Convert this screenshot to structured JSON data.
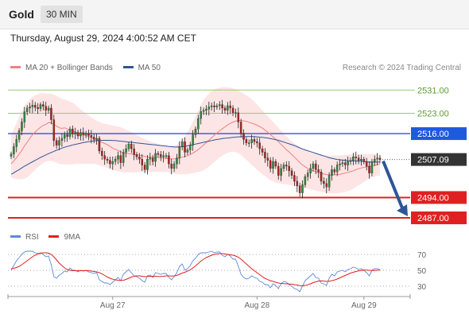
{
  "header": {
    "title": "Gold",
    "timeframe": "30 MIN"
  },
  "datetime": "Thursday, August 29, 2024 4:00:52 AM CET",
  "legend": {
    "ma20_label": "MA 20 + Bollinger Bands",
    "ma50_label": "MA 50",
    "source": "Research © 2024 Trading Central"
  },
  "rsi_legend": {
    "rsi_label": "RSI",
    "ma_label": "9MA"
  },
  "colors": {
    "ma20": "#f08080",
    "ma50": "#2f5597",
    "band": "#fde0e0",
    "resistance": "#9ccc65",
    "pivot": "#1e5adc",
    "support": "#e02020",
    "arrow": "#2f5597",
    "rsi": "#5b8ad9",
    "rsi_ma": "#e02020"
  },
  "chart_data": [
    {
      "type": "candlestick",
      "ylim": [
        2484,
        2536
      ],
      "x_tick_labels": [
        "Aug 27",
        "Aug 28",
        "Aug 29"
      ],
      "levels": [
        {
          "value": "2531.00",
          "kind": "resistance"
        },
        {
          "value": "2523.00",
          "kind": "resistance"
        },
        {
          "value": "2516.00",
          "kind": "pivot"
        },
        {
          "value": "2507.09",
          "kind": "last"
        },
        {
          "value": "2494.00",
          "kind": "support"
        },
        {
          "value": "2487.00",
          "kind": "support"
        }
      ],
      "close": [
        2509.0,
        2511.5,
        2514.0,
        2517.0,
        2520.0,
        2523.5,
        2524.8,
        2525.2,
        2525.8,
        2525.0,
        2524.6,
        2526.0,
        2525.4,
        2524.0,
        2524.8,
        2520.8,
        2513.6,
        2512.0,
        2513.6,
        2514.4,
        2515.6,
        2515.0,
        2517.6,
        2516.0,
        2516.4,
        2515.2,
        2516.4,
        2515.6,
        2516.0,
        2515.4,
        2514.8,
        2514.0,
        2514.4,
        2510.0,
        2508.4,
        2507.2,
        2506.8,
        2505.6,
        2506.4,
        2507.2,
        2508.4,
        2506.0,
        2509.6,
        2510.8,
        2512.4,
        2510.8,
        2508.8,
        2508.0,
        2507.2,
        2505.2,
        2503.6,
        2507.2,
        2507.6,
        2506.4,
        2509.2,
        2508.8,
        2508.0,
        2508.4,
        2508.4,
        2505.6,
        2504.0,
        2505.6,
        2507.6,
        2511.6,
        2513.2,
        2509.6,
        2510.4,
        2512.0,
        2515.6,
        2517.6,
        2521.2,
        2523.6,
        2524.0,
        2524.4,
        2525.2,
        2525.6,
        2525.2,
        2525.6,
        2526.0,
        2524.8,
        2524.0,
        2525.6,
        2524.8,
        2523.2,
        2523.2,
        2520.0,
        2516.0,
        2514.0,
        2512.8,
        2512.8,
        2514.0,
        2513.2,
        2512.8,
        2510.8,
        2509.6,
        2507.6,
        2506.8,
        2504.0,
        2506.4,
        2504.8,
        2501.6,
        2504.0,
        2505.2,
        2504.8,
        2503.2,
        2501.6,
        2499.6,
        2498.0,
        2495.6,
        2498.4,
        2501.2,
        2502.4,
        2504.0,
        2505.6,
        2503.6,
        2502.8,
        2499.6,
        2498.8,
        2497.6,
        2501.6,
        2503.6,
        2502.8,
        2505.2,
        2505.6,
        2506.0,
        2505.2,
        2506.4,
        2506.8,
        2508.0,
        2507.6,
        2506.8,
        2507.2,
        2506.4,
        2504.8,
        2502.4,
        2506.4,
        2507.2,
        2507.6,
        2507.0
      ],
      "ma20": [
        2505.6,
        2506.6,
        2507.7,
        2509.0,
        2510.2,
        2511.8,
        2513.0,
        2514.4,
        2515.6,
        2516.6,
        2517.4,
        2518.2,
        2518.8,
        2519.2,
        2519.8,
        2519.7,
        2519.2,
        2518.6,
        2518.0,
        2517.8,
        2518.0,
        2517.6,
        2517.2,
        2516.8,
        2516.6,
        2516.2,
        2516.0,
        2515.6,
        2515.3,
        2515.0,
        2514.6,
        2514.2,
        2514.0,
        2513.4,
        2513.0,
        2512.6,
        2512.2,
        2511.6,
        2511.0,
        2510.6,
        2510.2,
        2509.7,
        2509.4,
        2509.2,
        2509.1,
        2509.0,
        2508.8,
        2508.7,
        2508.6,
        2508.4,
        2508.2,
        2508.0,
        2507.9,
        2507.8,
        2507.8,
        2507.8,
        2507.7,
        2507.6,
        2507.6,
        2507.4,
        2507.3,
        2507.3,
        2507.4,
        2507.6,
        2507.9,
        2508.1,
        2508.4,
        2508.8,
        2509.3,
        2509.9,
        2510.5,
        2511.3,
        2512.1,
        2512.9,
        2513.7,
        2514.6,
        2515.4,
        2516.2,
        2517.0,
        2517.7,
        2518.3,
        2519.0,
        2519.5,
        2520.0,
        2520.3,
        2520.5,
        2520.5,
        2520.4,
        2520.2,
        2519.9,
        2519.6,
        2519.3,
        2518.9,
        2518.4,
        2517.9,
        2517.2,
        2516.5,
        2515.7,
        2514.9,
        2514.1,
        2513.2,
        2512.3,
        2511.4,
        2510.5,
        2509.7,
        2508.8,
        2507.9,
        2507.0,
        2506.0,
        2505.2,
        2504.6,
        2504.0,
        2503.6,
        2503.2,
        2502.9,
        2502.6,
        2502.3,
        2502.1,
        2501.9,
        2501.8,
        2501.8,
        2501.8,
        2501.9,
        2502.0,
        2502.2,
        2502.4,
        2502.7,
        2502.9,
        2503.2,
        2503.6,
        2503.9,
        2504.2,
        2504.4,
        2504.6,
        2504.7,
        2504.9,
        2505.1,
        2505.3,
        2505.5
      ],
      "ma50": [
        2502.0,
        2502.5,
        2503.1,
        2503.6,
        2504.2,
        2504.8,
        2505.3,
        2505.8,
        2506.3,
        2506.8,
        2507.3,
        2507.8,
        2508.2,
        2508.7,
        2509.1,
        2509.5,
        2509.9,
        2510.3,
        2510.6,
        2511.0,
        2511.3,
        2511.6,
        2511.8,
        2512.1,
        2512.3,
        2512.5,
        2512.7,
        2512.9,
        2513.1,
        2513.2,
        2513.4,
        2513.5,
        2513.6,
        2513.6,
        2513.7,
        2513.7,
        2513.7,
        2513.7,
        2513.6,
        2513.6,
        2513.5,
        2513.4,
        2513.3,
        2513.2,
        2513.1,
        2513.0,
        2512.9,
        2512.8,
        2512.7,
        2512.6,
        2512.5,
        2512.4,
        2512.3,
        2512.2,
        2512.1,
        2512.0,
        2511.9,
        2511.8,
        2511.7,
        2511.6,
        2511.5,
        2511.4,
        2511.4,
        2511.4,
        2511.5,
        2511.6,
        2511.8,
        2512.0,
        2512.2,
        2512.4,
        2512.6,
        2512.8,
        2513.0,
        2513.2,
        2513.4,
        2513.6,
        2513.8,
        2514.0,
        2514.1,
        2514.3,
        2514.4,
        2514.5,
        2514.6,
        2514.7,
        2514.8,
        2514.9,
        2514.9,
        2515.0,
        2515.0,
        2515.0,
        2515.0,
        2515.0,
        2514.9,
        2514.8,
        2514.7,
        2514.6,
        2514.5,
        2514.3,
        2514.1,
        2513.9,
        2513.7,
        2513.4,
        2513.1,
        2512.8,
        2512.5,
        2512.2,
        2511.9,
        2511.5,
        2511.1,
        2510.7,
        2510.4,
        2510.1,
        2509.8,
        2509.5,
        2509.2,
        2508.9,
        2508.6,
        2508.3,
        2508.0,
        2507.7,
        2507.5,
        2507.3,
        2507.1,
        2507.0,
        2506.9,
        2506.8,
        2506.7,
        2506.6,
        2506.6,
        2506.6,
        2506.5,
        2506.5,
        2506.4,
        2506.3,
        2506.2,
        2506.2,
        2506.2,
        2506.2,
        2506.2
      ],
      "bb_upper": [
        2515.6,
        2517.6,
        2519.7,
        2521.8,
        2523.8,
        2525.6,
        2526.8,
        2527.8,
        2528.6,
        2529.2,
        2529.6,
        2529.9,
        2530.0,
        2529.8,
        2529.8,
        2529.7,
        2529.4,
        2529.0,
        2528.4,
        2528.0,
        2527.8,
        2527.4,
        2527.0,
        2526.6,
        2526.0,
        2525.2,
        2524.4,
        2523.6,
        2523.0,
        2522.2,
        2521.6,
        2521.0,
        2520.4,
        2520.0,
        2519.6,
        2519.4,
        2519.2,
        2519.0,
        2518.8,
        2518.6,
        2518.4,
        2518.2,
        2517.8,
        2517.4,
        2517.0,
        2516.5,
        2516.0,
        2515.5,
        2515.0,
        2514.5,
        2514.2,
        2513.8,
        2513.4,
        2513.0,
        2512.8,
        2512.6,
        2512.2,
        2512.0,
        2511.8,
        2511.6,
        2511.6,
        2511.8,
        2512.2,
        2513.0,
        2514.0,
        2515.2,
        2516.6,
        2518.2,
        2520.0,
        2522.0,
        2524.0,
        2526.0,
        2527.6,
        2528.8,
        2529.8,
        2530.6,
        2531.2,
        2531.6,
        2531.8,
        2532.0,
        2532.0,
        2532.0,
        2531.8,
        2531.6,
        2531.2,
        2530.8,
        2530.4,
        2529.8,
        2529.2,
        2528.6,
        2527.8,
        2527.0,
        2526.0,
        2525.0,
        2524.0,
        2523.0,
        2522.0,
        2521.0,
        2520.0,
        2519.0,
        2518.0,
        2517.0,
        2516.0,
        2515.0,
        2514.2,
        2513.4,
        2512.6,
        2512.0,
        2511.4,
        2510.8,
        2510.4,
        2510.0,
        2509.6,
        2509.4,
        2509.2,
        2509.0,
        2508.8,
        2508.6,
        2508.5,
        2508.4,
        2508.4,
        2508.4,
        2508.4,
        2508.5,
        2508.6,
        2508.7,
        2508.8,
        2508.9,
        2509.0,
        2509.0,
        2509.0,
        2509.0,
        2509.0,
        2509.0,
        2509.0,
        2509.0,
        2509.0,
        2509.0,
        2509.0
      ],
      "bb_lower": [
        2501.0,
        2500.6,
        2500.4,
        2500.3,
        2500.3,
        2500.5,
        2500.9,
        2501.7,
        2502.6,
        2503.6,
        2504.4,
        2505.2,
        2505.8,
        2506.4,
        2506.6,
        2506.6,
        2506.4,
        2506.0,
        2505.6,
        2505.4,
        2505.4,
        2505.4,
        2505.4,
        2505.4,
        2505.6,
        2505.6,
        2505.6,
        2505.6,
        2505.6,
        2505.6,
        2505.6,
        2505.6,
        2505.4,
        2505.0,
        2504.8,
        2504.6,
        2504.2,
        2503.8,
        2503.4,
        2503.2,
        2503.0,
        2502.8,
        2502.7,
        2502.6,
        2502.6,
        2502.6,
        2502.6,
        2502.7,
        2502.8,
        2502.8,
        2502.8,
        2502.8,
        2502.8,
        2502.8,
        2502.8,
        2502.8,
        2502.8,
        2502.8,
        2502.8,
        2502.6,
        2502.4,
        2502.2,
        2502.0,
        2502.0,
        2502.0,
        2502.0,
        2502.0,
        2502.2,
        2502.4,
        2502.6,
        2502.8,
        2503.0,
        2503.4,
        2504.0,
        2504.6,
        2505.4,
        2506.2,
        2507.0,
        2507.8,
        2508.4,
        2509.0,
        2509.4,
        2509.6,
        2509.8,
        2509.6,
        2509.2,
        2508.6,
        2507.8,
        2507.0,
        2506.2,
        2505.2,
        2504.4,
        2503.6,
        2502.8,
        2502.0,
        2501.4,
        2500.6,
        2500.0,
        2499.6,
        2499.2,
        2499.0,
        2498.8,
        2498.6,
        2498.6,
        2498.4,
        2498.2,
        2498.0,
        2497.8,
        2497.6,
        2497.4,
        2497.2,
        2497.0,
        2496.8,
        2496.6,
        2496.4,
        2496.2,
        2496.0,
        2495.8,
        2495.6,
        2495.4,
        2495.4,
        2495.4,
        2495.4,
        2495.6,
        2495.8,
        2496.0,
        2496.2,
        2496.6,
        2497.0,
        2497.6,
        2498.2,
        2498.8,
        2499.4,
        2500.0,
        2500.6,
        2501.0,
        2501.2,
        2501.4,
        2501.6
      ]
    },
    {
      "type": "line",
      "ylim": [
        20,
        80
      ],
      "y_ticks": [
        "70",
        "50",
        "30"
      ],
      "rsi": [
        50,
        56,
        62,
        66,
        70,
        73,
        74,
        74,
        74,
        72,
        71,
        72,
        70,
        67,
        68,
        57,
        42,
        40,
        44,
        46,
        49,
        48,
        53,
        50,
        50,
        48,
        50,
        49,
        50,
        48,
        47,
        46,
        47,
        38,
        36,
        34,
        34,
        32,
        35,
        38,
        41,
        37,
        45,
        48,
        51,
        47,
        43,
        42,
        40,
        37,
        35,
        43,
        44,
        41,
        47,
        46,
        45,
        46,
        46,
        41,
        38,
        42,
        47,
        55,
        58,
        50,
        52,
        56,
        62,
        65,
        70,
        72,
        72,
        72,
        73,
        74,
        72,
        73,
        73,
        69,
        67,
        70,
        68,
        64,
        64,
        55,
        45,
        41,
        39,
        40,
        43,
        41,
        40,
        36,
        35,
        32,
        32,
        28,
        33,
        31,
        27,
        33,
        36,
        35,
        32,
        30,
        27,
        26,
        23,
        30,
        37,
        40,
        43,
        46,
        41,
        40,
        34,
        33,
        31,
        40,
        45,
        43,
        48,
        49,
        50,
        48,
        51,
        52,
        54,
        53,
        51,
        52,
        50,
        47,
        43,
        50,
        52,
        52,
        51
      ],
      "rsi_ma": [
        52,
        52.5,
        53.5,
        55,
        57,
        59.5,
        62,
        64.5,
        67,
        69,
        70.5,
        71.5,
        72,
        72,
        71.5,
        70,
        67,
        63,
        59,
        56,
        53,
        51,
        50,
        49.5,
        49.5,
        49.5,
        49.5,
        49.5,
        49.5,
        49.5,
        49,
        48.5,
        48,
        47,
        45.5,
        43.5,
        41.5,
        40,
        38.8,
        38,
        37.5,
        37.2,
        37.5,
        38.5,
        40,
        41.5,
        42.5,
        43,
        43,
        42.5,
        42,
        42.2,
        42.5,
        42.5,
        42.5,
        42.3,
        42.2,
        42.5,
        43,
        43,
        42.8,
        43,
        43.5,
        45,
        46.5,
        47.5,
        49,
        50.5,
        53,
        55.5,
        58.5,
        61.5,
        64,
        66,
        67.5,
        69,
        70,
        70.5,
        71,
        71,
        70.5,
        70,
        69.5,
        69,
        68,
        66.5,
        64,
        61,
        58,
        55,
        52,
        49.5,
        47,
        44.5,
        42,
        39.8,
        38.3,
        37,
        36,
        35,
        34,
        33.5,
        33.2,
        33,
        32.8,
        32.5,
        32,
        31.5,
        30.8,
        30.5,
        31,
        31.8,
        33,
        34.5,
        35.5,
        36.5,
        36.8,
        36.5,
        36,
        36.2,
        37,
        37.8,
        39,
        40.5,
        42,
        43.5,
        45,
        46.5,
        47.5,
        48.5,
        49.2,
        49.8,
        50.2,
        50.2,
        50,
        49.8,
        49.8,
        50,
        50.2
      ]
    }
  ]
}
